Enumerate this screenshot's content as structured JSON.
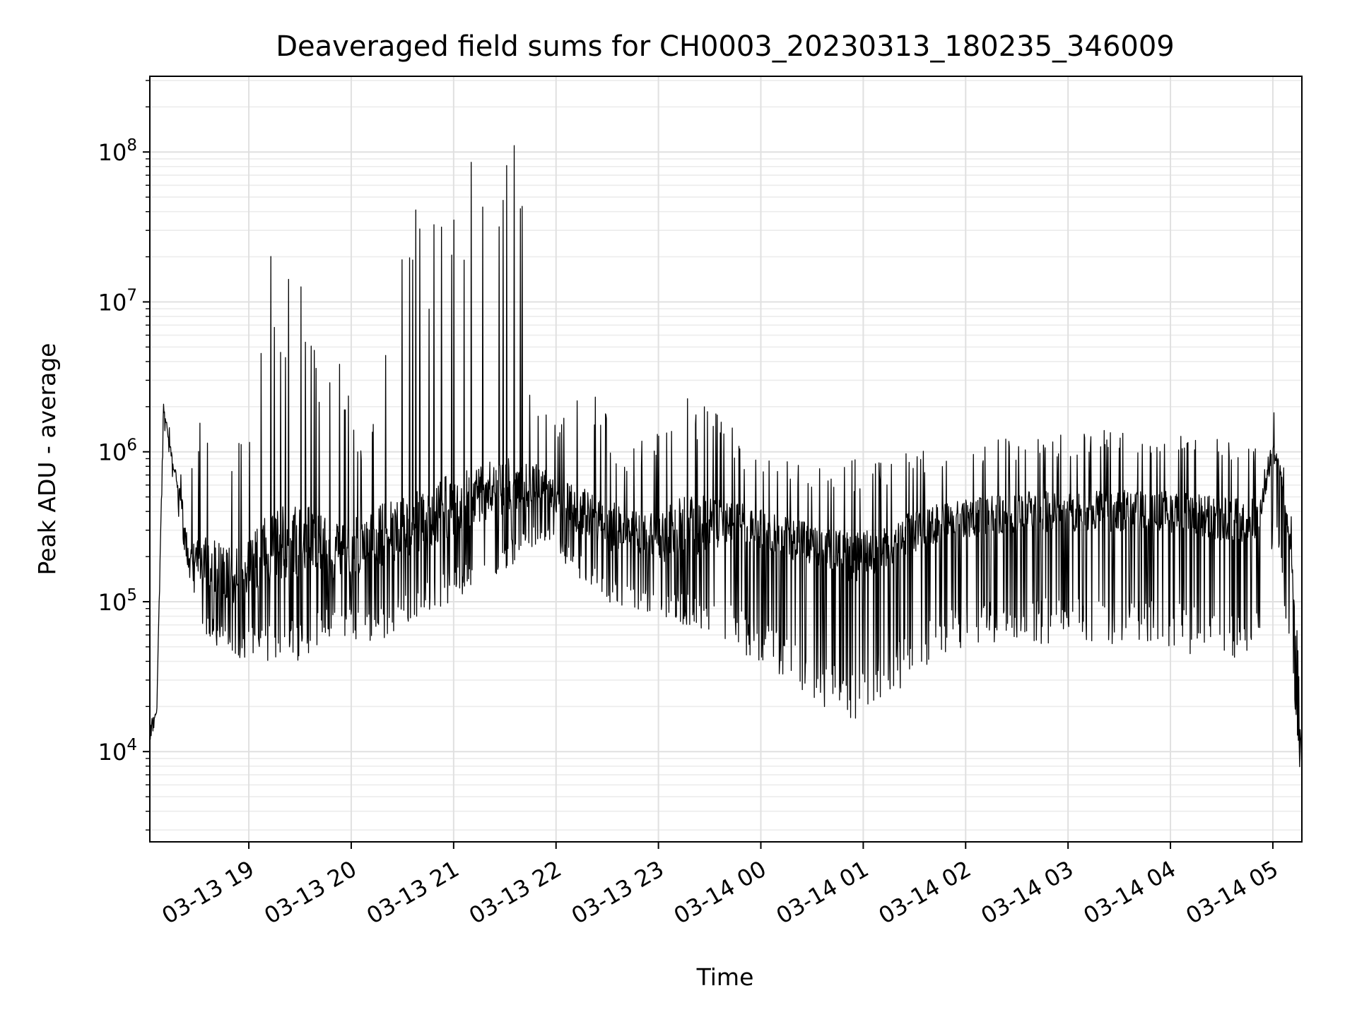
{
  "chart_data": {
    "type": "line",
    "title": "Deaveraged field sums for CH0003_20230313_180235_346009",
    "xlabel": "Time",
    "ylabel": "Peak ADU - average",
    "yscale": "log",
    "ylim": [
      2500,
      320000000
    ],
    "xlim": [
      "2023-03-13 18:02",
      "2023-03-14 05:17"
    ],
    "grid": true,
    "line_color": "#000000",
    "xticks": [
      {
        "t": "2023-03-13 19:00",
        "label": "03-13 19"
      },
      {
        "t": "2023-03-13 20:00",
        "label": "03-13 20"
      },
      {
        "t": "2023-03-13 21:00",
        "label": "03-13 21"
      },
      {
        "t": "2023-03-13 22:00",
        "label": "03-13 22"
      },
      {
        "t": "2023-03-13 23:00",
        "label": "03-13 23"
      },
      {
        "t": "2023-03-14 00:00",
        "label": "03-14 00"
      },
      {
        "t": "2023-03-14 01:00",
        "label": "03-14 01"
      },
      {
        "t": "2023-03-14 02:00",
        "label": "03-14 02"
      },
      {
        "t": "2023-03-14 03:00",
        "label": "03-14 03"
      },
      {
        "t": "2023-03-14 04:00",
        "label": "03-14 04"
      },
      {
        "t": "2023-03-14 05:00",
        "label": "03-14 05"
      }
    ],
    "yticks": [
      {
        "value": 10000,
        "base": "10",
        "exp": "4"
      },
      {
        "value": 100000,
        "base": "10",
        "exp": "5"
      },
      {
        "value": 1000000,
        "base": "10",
        "exp": "6"
      },
      {
        "value": 10000000,
        "base": "10",
        "exp": "7"
      },
      {
        "value": 100000000,
        "base": "10",
        "exp": "8"
      }
    ],
    "envelope": {
      "t": [
        "2023-03-13 18:02",
        "2023-03-13 18:06",
        "2023-03-13 18:10",
        "2023-03-13 18:15",
        "2023-03-13 18:20",
        "2023-03-13 18:25",
        "2023-03-13 18:30",
        "2023-03-13 18:35",
        "2023-03-13 18:40",
        "2023-03-13 18:45",
        "2023-03-13 18:50",
        "2023-03-13 18:55",
        "2023-03-13 19:00",
        "2023-03-13 19:05",
        "2023-03-13 19:10",
        "2023-03-13 19:15",
        "2023-03-13 19:20",
        "2023-03-13 19:25",
        "2023-03-13 19:30",
        "2023-03-13 19:35",
        "2023-03-13 19:40",
        "2023-03-13 19:45",
        "2023-03-13 19:50",
        "2023-03-13 19:55",
        "2023-03-13 20:00",
        "2023-03-13 20:05",
        "2023-03-13 20:10",
        "2023-03-13 20:15",
        "2023-03-13 20:20",
        "2023-03-13 20:25",
        "2023-03-13 20:30",
        "2023-03-13 20:35",
        "2023-03-13 20:40",
        "2023-03-13 20:45",
        "2023-03-13 20:50",
        "2023-03-13 20:55",
        "2023-03-13 21:00",
        "2023-03-13 21:05",
        "2023-03-13 21:10",
        "2023-03-13 21:15",
        "2023-03-13 21:20",
        "2023-03-13 21:25",
        "2023-03-13 21:30",
        "2023-03-13 21:35",
        "2023-03-13 21:40",
        "2023-03-13 21:45",
        "2023-03-13 21:50",
        "2023-03-13 21:55",
        "2023-03-13 22:00",
        "2023-03-13 22:10",
        "2023-03-13 22:20",
        "2023-03-13 22:30",
        "2023-03-13 22:40",
        "2023-03-13 22:50",
        "2023-03-13 23:00",
        "2023-03-13 23:10",
        "2023-03-13 23:20",
        "2023-03-13 23:30",
        "2023-03-13 23:40",
        "2023-03-13 23:50",
        "2023-03-14 00:00",
        "2023-03-14 00:10",
        "2023-03-14 00:20",
        "2023-03-14 00:30",
        "2023-03-14 00:40",
        "2023-03-14 00:50",
        "2023-03-14 01:00",
        "2023-03-14 01:10",
        "2023-03-14 01:20",
        "2023-03-14 01:30",
        "2023-03-14 01:40",
        "2023-03-14 01:50",
        "2023-03-14 02:00",
        "2023-03-14 02:10",
        "2023-03-14 02:20",
        "2023-03-14 02:30",
        "2023-03-14 02:40",
        "2023-03-14 02:50",
        "2023-03-14 03:00",
        "2023-03-14 03:10",
        "2023-03-14 03:20",
        "2023-03-14 03:30",
        "2023-03-14 03:40",
        "2023-03-14 03:50",
        "2023-03-14 04:00",
        "2023-03-14 04:10",
        "2023-03-14 04:20",
        "2023-03-14 04:30",
        "2023-03-14 04:40",
        "2023-03-14 04:50",
        "2023-03-14 05:00",
        "2023-03-14 05:05",
        "2023-03-14 05:10",
        "2023-03-14 05:14",
        "2023-03-14 05:17"
      ],
      "low": [
        11000,
        16000,
        1500000,
        700000,
        300000,
        150000,
        90000,
        55000,
        50000,
        48000,
        45000,
        42000,
        40000,
        40000,
        40000,
        40000,
        40000,
        40000,
        40000,
        45000,
        50000,
        55000,
        55000,
        55000,
        55000,
        55000,
        55000,
        55000,
        55000,
        60000,
        65000,
        70000,
        75000,
        80000,
        85000,
        95000,
        100000,
        110000,
        120000,
        130000,
        140000,
        150000,
        160000,
        170000,
        200000,
        220000,
        250000,
        230000,
        200000,
        160000,
        120000,
        100000,
        90000,
        85000,
        80000,
        75000,
        65000,
        60000,
        55000,
        45000,
        38000,
        30000,
        25000,
        22000,
        19000,
        17000,
        16000,
        20000,
        25000,
        30000,
        40000,
        45000,
        50000,
        50000,
        50000,
        52000,
        52000,
        52000,
        52000,
        52000,
        50000,
        50000,
        50000,
        50000,
        50000,
        45000,
        45000,
        42000,
        42000,
        42000,
        250000,
        150000,
        40000,
        15000,
        4500
      ],
      "high": [
        20000,
        20000,
        2500000,
        1200000,
        700000,
        1600000,
        1600000,
        1600000,
        1600000,
        1500000,
        1400000,
        1300000,
        1300000,
        13000000,
        19000000,
        40000000,
        17000000,
        22000000,
        15000000,
        12000000,
        7000000,
        5000000,
        10000000,
        4000000,
        2000000,
        1500000,
        1300000,
        2000000,
        5000000,
        25000000,
        37000000,
        57000000,
        33000000,
        35000000,
        35000000,
        57000000,
        110000000,
        45000000,
        150000000,
        40000000,
        170000000,
        180000000,
        180000000,
        180000000,
        170000000,
        3000000,
        2500000,
        2000000,
        1500000,
        2200000,
        2600000,
        1800000,
        1000000,
        1200000,
        1400000,
        3600000,
        2200000,
        2000000,
        1600000,
        1200000,
        1100000,
        1000000,
        950000,
        900000,
        900000,
        900000,
        900000,
        950000,
        1000000,
        1100000,
        1150000,
        1200000,
        1200000,
        1250000,
        1300000,
        1350000,
        1400000,
        1400000,
        1400000,
        1400000,
        1450000,
        1450000,
        1500000,
        1500000,
        1450000,
        1400000,
        1400000,
        1400000,
        1350000,
        1300000,
        2000000,
        1000000,
        500000,
        200000,
        12000
      ],
      "mid": [
        15000,
        18000,
        2000000,
        900000,
        500000,
        180000,
        200000,
        180000,
        170000,
        160000,
        150000,
        150000,
        180000,
        200000,
        220000,
        240000,
        250000,
        250000,
        250000,
        250000,
        240000,
        230000,
        220000,
        220000,
        230000,
        240000,
        250000,
        260000,
        280000,
        300000,
        320000,
        340000,
        360000,
        380000,
        400000,
        420000,
        450000,
        480000,
        500000,
        520000,
        540000,
        560000,
        580000,
        600000,
        600000,
        600000,
        600000,
        550000,
        500000,
        420000,
        380000,
        330000,
        300000,
        280000,
        280000,
        300000,
        320000,
        330000,
        330000,
        320000,
        300000,
        280000,
        260000,
        240000,
        220000,
        200000,
        200000,
        230000,
        260000,
        290000,
        320000,
        340000,
        360000,
        370000,
        380000,
        390000,
        400000,
        400000,
        400000,
        400000,
        400000,
        400000,
        400000,
        400000,
        400000,
        380000,
        370000,
        360000,
        350000,
        350000,
        1000000,
        700000,
        250000,
        60000,
        8000
      ]
    },
    "points": 2600,
    "seed": 346009
  }
}
